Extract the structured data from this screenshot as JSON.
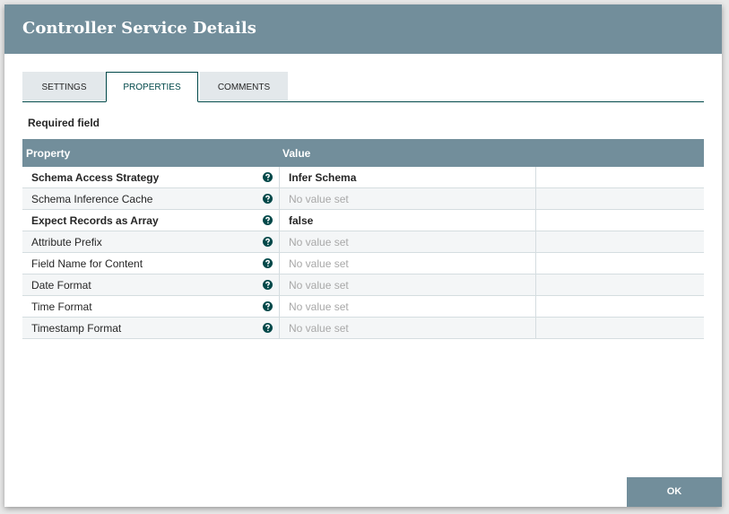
{
  "header": {
    "title": "Controller Service Details"
  },
  "tabs": [
    {
      "label": "SETTINGS",
      "active": false
    },
    {
      "label": "PROPERTIES",
      "active": true
    },
    {
      "label": "COMMENTS",
      "active": false
    }
  ],
  "required_note": "Required field",
  "table": {
    "columns": [
      "Property",
      "Value"
    ],
    "rows": [
      {
        "property": "Schema Access Strategy",
        "value": "Infer Schema",
        "required": true,
        "set": true
      },
      {
        "property": "Schema Inference Cache",
        "value": "No value set",
        "required": false,
        "set": false
      },
      {
        "property": "Expect Records as Array",
        "value": "false",
        "required": true,
        "set": true
      },
      {
        "property": "Attribute Prefix",
        "value": "No value set",
        "required": false,
        "set": false
      },
      {
        "property": "Field Name for Content",
        "value": "No value set",
        "required": false,
        "set": false
      },
      {
        "property": "Date Format",
        "value": "No value set",
        "required": false,
        "set": false
      },
      {
        "property": "Time Format",
        "value": "No value set",
        "required": false,
        "set": false
      },
      {
        "property": "Timestamp Format",
        "value": "No value set",
        "required": false,
        "set": false
      }
    ]
  },
  "button": {
    "label": "OK"
  }
}
